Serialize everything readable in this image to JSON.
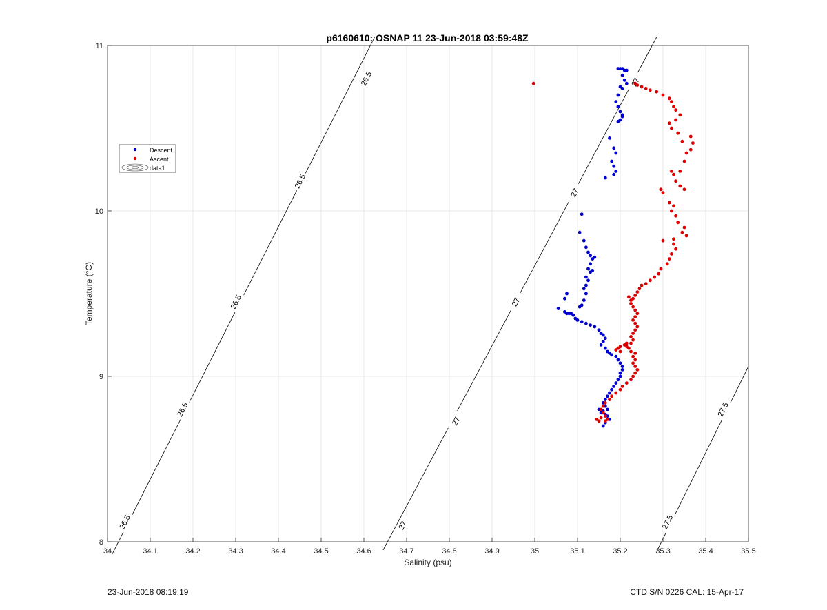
{
  "chart_data": {
    "type": "scatter",
    "title": "p6160610: OSNAP 11 23-Jun-2018 03:59:48Z",
    "xlabel": "Salinity (psu)",
    "ylabel": "Temperature (°C)",
    "xlim": [
      34,
      35.5
    ],
    "ylim": [
      8,
      11
    ],
    "xticks": [
      34,
      34.1,
      34.2,
      34.3,
      34.4,
      34.5,
      34.6,
      34.7,
      34.8,
      34.9,
      35,
      35.1,
      35.2,
      35.3,
      35.4,
      35.5
    ],
    "xtick_labels": [
      "34",
      "34.1",
      "34.2",
      "34.3",
      "34.4",
      "34.5",
      "34.6",
      "34.7",
      "34.8",
      "34.9",
      "35",
      "35.1",
      "35.2",
      "35.3",
      "35.4",
      "35.5"
    ],
    "yticks": [
      8,
      9,
      10,
      11
    ],
    "ytick_labels": [
      "8",
      "9",
      "10",
      "11"
    ],
    "grid": true,
    "legend": {
      "placement": "left",
      "entries": [
        "Descent",
        "Ascent",
        "data1"
      ]
    },
    "contours": [
      {
        "level": "26.5",
        "points": [
          [
            34.01,
            7.92
          ],
          [
            34.625,
            11.05
          ]
        ],
        "label_positions": [
          [
            34.04,
            8.12
          ],
          [
            34.175,
            8.8
          ],
          [
            34.3,
            9.45
          ],
          [
            34.45,
            10.18
          ],
          [
            34.605,
            10.8
          ]
        ]
      },
      {
        "level": "27",
        "points": [
          [
            34.645,
            7.95
          ],
          [
            35.285,
            11.05
          ]
        ],
        "label_positions": [
          [
            34.69,
            8.1
          ],
          [
            34.815,
            8.73
          ],
          [
            34.955,
            9.45
          ],
          [
            35.093,
            10.11
          ],
          [
            35.235,
            10.78
          ]
        ]
      },
      {
        "level": "27.5",
        "points": [
          [
            35.285,
            7.94
          ],
          [
            35.5,
            9.06
          ]
        ],
        "label_positions": [
          [
            35.31,
            8.12
          ],
          [
            35.44,
            8.8
          ]
        ]
      }
    ],
    "series": [
      {
        "name": "Descent",
        "color": "#0000cc",
        "points": [
          [
            35.195,
            10.86
          ],
          [
            35.2,
            10.86
          ],
          [
            35.205,
            10.86
          ],
          [
            35.21,
            10.85
          ],
          [
            35.215,
            10.85
          ],
          [
            35.205,
            10.82
          ],
          [
            35.21,
            10.79
          ],
          [
            35.215,
            10.77
          ],
          [
            35.2,
            10.75
          ],
          [
            35.205,
            10.74
          ],
          [
            35.195,
            10.7
          ],
          [
            35.19,
            10.66
          ],
          [
            35.195,
            10.63
          ],
          [
            35.2,
            10.6
          ],
          [
            35.205,
            10.57
          ],
          [
            35.2,
            10.55
          ],
          [
            35.195,
            10.54
          ],
          [
            35.205,
            10.58
          ],
          [
            35.175,
            10.44
          ],
          [
            35.185,
            10.38
          ],
          [
            35.19,
            10.35
          ],
          [
            35.18,
            10.3
          ],
          [
            35.185,
            10.27
          ],
          [
            35.19,
            10.24
          ],
          [
            35.185,
            10.22
          ],
          [
            35.165,
            10.2
          ],
          [
            35.11,
            9.98
          ],
          [
            35.105,
            9.87
          ],
          [
            35.115,
            9.82
          ],
          [
            35.12,
            9.78
          ],
          [
            35.125,
            9.75
          ],
          [
            35.13,
            9.73
          ],
          [
            35.135,
            9.71
          ],
          [
            35.14,
            9.72
          ],
          [
            35.13,
            9.68
          ],
          [
            35.125,
            9.65
          ],
          [
            35.13,
            9.63
          ],
          [
            35.135,
            9.64
          ],
          [
            35.12,
            9.6
          ],
          [
            35.125,
            9.58
          ],
          [
            35.12,
            9.55
          ],
          [
            35.115,
            9.53
          ],
          [
            35.12,
            9.5
          ],
          [
            35.115,
            9.46
          ],
          [
            35.11,
            9.43
          ],
          [
            35.105,
            9.42
          ],
          [
            35.075,
            9.5
          ],
          [
            35.07,
            9.47
          ],
          [
            35.055,
            9.41
          ],
          [
            35.07,
            9.39
          ],
          [
            35.075,
            9.38
          ],
          [
            35.08,
            9.38
          ],
          [
            35.085,
            9.38
          ],
          [
            35.09,
            9.37
          ],
          [
            35.095,
            9.35
          ],
          [
            35.1,
            9.34
          ],
          [
            35.11,
            9.33
          ],
          [
            35.12,
            9.32
          ],
          [
            35.13,
            9.31
          ],
          [
            35.14,
            9.3
          ],
          [
            35.15,
            9.28
          ],
          [
            35.155,
            9.26
          ],
          [
            35.16,
            9.25
          ],
          [
            35.165,
            9.23
          ],
          [
            35.16,
            9.21
          ],
          [
            35.155,
            9.19
          ],
          [
            35.165,
            9.17
          ],
          [
            35.17,
            9.15
          ],
          [
            35.175,
            9.14
          ],
          [
            35.18,
            9.13
          ],
          [
            35.19,
            9.12
          ],
          [
            35.195,
            9.1
          ],
          [
            35.2,
            9.08
          ],
          [
            35.205,
            9.06
          ],
          [
            35.205,
            9.04
          ],
          [
            35.2,
            9.02
          ],
          [
            35.2,
            9.0
          ],
          [
            35.195,
            8.98
          ],
          [
            35.19,
            8.96
          ],
          [
            35.185,
            8.94
          ],
          [
            35.18,
            8.92
          ],
          [
            35.175,
            8.9
          ],
          [
            35.17,
            8.88
          ],
          [
            35.165,
            8.86
          ],
          [
            35.16,
            8.84
          ],
          [
            35.165,
            8.82
          ],
          [
            35.17,
            8.8
          ],
          [
            35.16,
            8.79
          ],
          [
            35.15,
            8.8
          ],
          [
            35.155,
            8.78
          ],
          [
            35.165,
            8.77
          ],
          [
            35.17,
            8.76
          ],
          [
            35.175,
            8.74
          ],
          [
            35.165,
            8.72
          ],
          [
            35.16,
            8.7
          ]
        ]
      },
      {
        "name": "Ascent",
        "color": "#dd0000",
        "points": [
          [
            34.997,
            10.77
          ],
          [
            35.235,
            10.77
          ],
          [
            35.24,
            10.76
          ],
          [
            35.25,
            10.75
          ],
          [
            35.26,
            10.74
          ],
          [
            35.27,
            10.73
          ],
          [
            35.285,
            10.72
          ],
          [
            35.3,
            10.7
          ],
          [
            35.315,
            10.68
          ],
          [
            35.32,
            10.66
          ],
          [
            35.325,
            10.63
          ],
          [
            35.33,
            10.61
          ],
          [
            35.34,
            10.58
          ],
          [
            35.33,
            10.55
          ],
          [
            35.315,
            10.53
          ],
          [
            35.32,
            10.5
          ],
          [
            35.335,
            10.47
          ],
          [
            35.345,
            10.42
          ],
          [
            35.365,
            10.45
          ],
          [
            35.37,
            10.41
          ],
          [
            35.365,
            10.37
          ],
          [
            35.355,
            10.35
          ],
          [
            35.35,
            10.3
          ],
          [
            35.32,
            10.24
          ],
          [
            35.325,
            10.22
          ],
          [
            35.34,
            10.24
          ],
          [
            35.33,
            10.18
          ],
          [
            35.34,
            10.15
          ],
          [
            35.35,
            10.13
          ],
          [
            35.295,
            10.13
          ],
          [
            35.3,
            10.11
          ],
          [
            35.315,
            10.05
          ],
          [
            35.325,
            10.03
          ],
          [
            35.32,
            10.0
          ],
          [
            35.33,
            9.97
          ],
          [
            35.335,
            9.93
          ],
          [
            35.35,
            9.9
          ],
          [
            35.345,
            9.87
          ],
          [
            35.355,
            9.85
          ],
          [
            35.3,
            9.82
          ],
          [
            35.325,
            9.83
          ],
          [
            35.325,
            9.8
          ],
          [
            35.33,
            9.77
          ],
          [
            35.32,
            9.74
          ],
          [
            35.315,
            9.71
          ],
          [
            35.31,
            9.68
          ],
          [
            35.295,
            9.65
          ],
          [
            35.29,
            9.62
          ],
          [
            35.28,
            9.6
          ],
          [
            35.27,
            9.58
          ],
          [
            35.26,
            9.56
          ],
          [
            35.25,
            9.55
          ],
          [
            35.245,
            9.53
          ],
          [
            35.24,
            9.51
          ],
          [
            35.235,
            9.49
          ],
          [
            35.23,
            9.47
          ],
          [
            35.225,
            9.46
          ],
          [
            35.22,
            9.48
          ],
          [
            35.225,
            9.44
          ],
          [
            35.23,
            9.42
          ],
          [
            35.235,
            9.4
          ],
          [
            35.24,
            9.38
          ],
          [
            35.235,
            9.36
          ],
          [
            35.23,
            9.34
          ],
          [
            35.235,
            9.32
          ],
          [
            35.24,
            9.3
          ],
          [
            35.235,
            9.28
          ],
          [
            35.23,
            9.26
          ],
          [
            35.225,
            9.24
          ],
          [
            35.23,
            9.22
          ],
          [
            35.225,
            9.2
          ],
          [
            35.215,
            9.18
          ],
          [
            35.22,
            9.17
          ],
          [
            35.225,
            9.15
          ],
          [
            35.235,
            9.14
          ],
          [
            35.23,
            9.12
          ],
          [
            35.235,
            9.1
          ],
          [
            35.23,
            9.08
          ],
          [
            35.235,
            9.06
          ],
          [
            35.24,
            9.04
          ],
          [
            35.235,
            9.02
          ],
          [
            35.23,
            9.0
          ],
          [
            35.225,
            8.98
          ],
          [
            35.215,
            8.96
          ],
          [
            35.205,
            8.94
          ],
          [
            35.2,
            8.92
          ],
          [
            35.19,
            8.9
          ],
          [
            35.18,
            8.88
          ],
          [
            35.175,
            8.86
          ],
          [
            35.165,
            8.84
          ],
          [
            35.16,
            8.82
          ],
          [
            35.155,
            8.8
          ],
          [
            35.16,
            8.78
          ],
          [
            35.165,
            8.76
          ],
          [
            35.155,
            8.75
          ],
          [
            35.145,
            8.74
          ],
          [
            35.15,
            8.73
          ],
          [
            35.165,
            8.73
          ],
          [
            35.17,
            8.74
          ],
          [
            35.195,
            9.17
          ],
          [
            35.2,
            9.18
          ],
          [
            35.21,
            9.19
          ],
          [
            35.215,
            9.2
          ],
          [
            35.2,
            9.15
          ],
          [
            35.19,
            9.16
          ]
        ]
      }
    ]
  },
  "footer": {
    "left": "23-Jun-2018 08:19:19",
    "right": "CTD S/N 0226  CAL: 15-Apr-17"
  }
}
